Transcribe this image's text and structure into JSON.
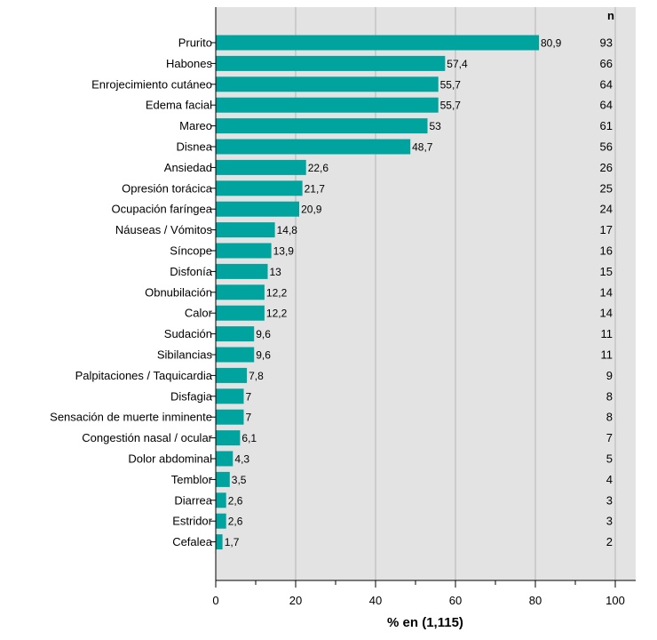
{
  "chart_data": {
    "type": "bar",
    "orientation": "horizontal",
    "categories": [
      "Prurito",
      "Habones",
      "Enrojecimiento cutáneo",
      "Edema facial",
      "Mareo",
      "Disnea",
      "Ansiedad",
      "Opresión torácica",
      "Ocupación faríngea",
      "Náuseas / Vómitos",
      "Síncope",
      "Disfonía",
      "Obnubilación",
      "Calor",
      "Sudación",
      "Sibilancias",
      "Palpitaciones / Taquicardia",
      "Disfagia",
      "Sensación de muerte inminente",
      "Congestión nasal / ocular",
      "Dolor abdominal",
      "Temblor",
      "Diarrea",
      "Estridor",
      "Cefalea"
    ],
    "values": [
      80.9,
      57.4,
      55.7,
      55.7,
      53,
      48.7,
      22.6,
      21.7,
      20.9,
      14.8,
      13.9,
      13,
      12.2,
      12.2,
      9.6,
      9.6,
      7.8,
      7,
      7,
      6.1,
      4.3,
      3.5,
      2.6,
      2.6,
      1.7
    ],
    "value_labels": [
      "80,9",
      "57,4",
      "55,7",
      "55,7",
      "53",
      "48,7",
      "22,6",
      "21,7",
      "20,9",
      "14,8",
      "13,9",
      "13",
      "12,2",
      "12,2",
      "9,6",
      "9,6",
      "7,8",
      "7",
      "7",
      "6,1",
      "4,3",
      "3,5",
      "2,6",
      "2,6",
      "1,7"
    ],
    "n_header": "n",
    "n_values": [
      "93",
      "66",
      "64",
      "64",
      "61",
      "56",
      "26",
      "25",
      "24",
      "17",
      "16",
      "15",
      "14",
      "14",
      "11",
      "11",
      "9",
      "8",
      "8",
      "7",
      "5",
      "4",
      "3",
      "3",
      "2"
    ],
    "xlabel": "% en (1,115)",
    "xlim": [
      0,
      105
    ],
    "xticks": [
      0,
      20,
      40,
      60,
      80,
      100
    ],
    "grid": true,
    "colors": {
      "bar": "#00a39e",
      "plot_background": "#e3e3e3",
      "gridline": "#c4c4c4"
    }
  }
}
